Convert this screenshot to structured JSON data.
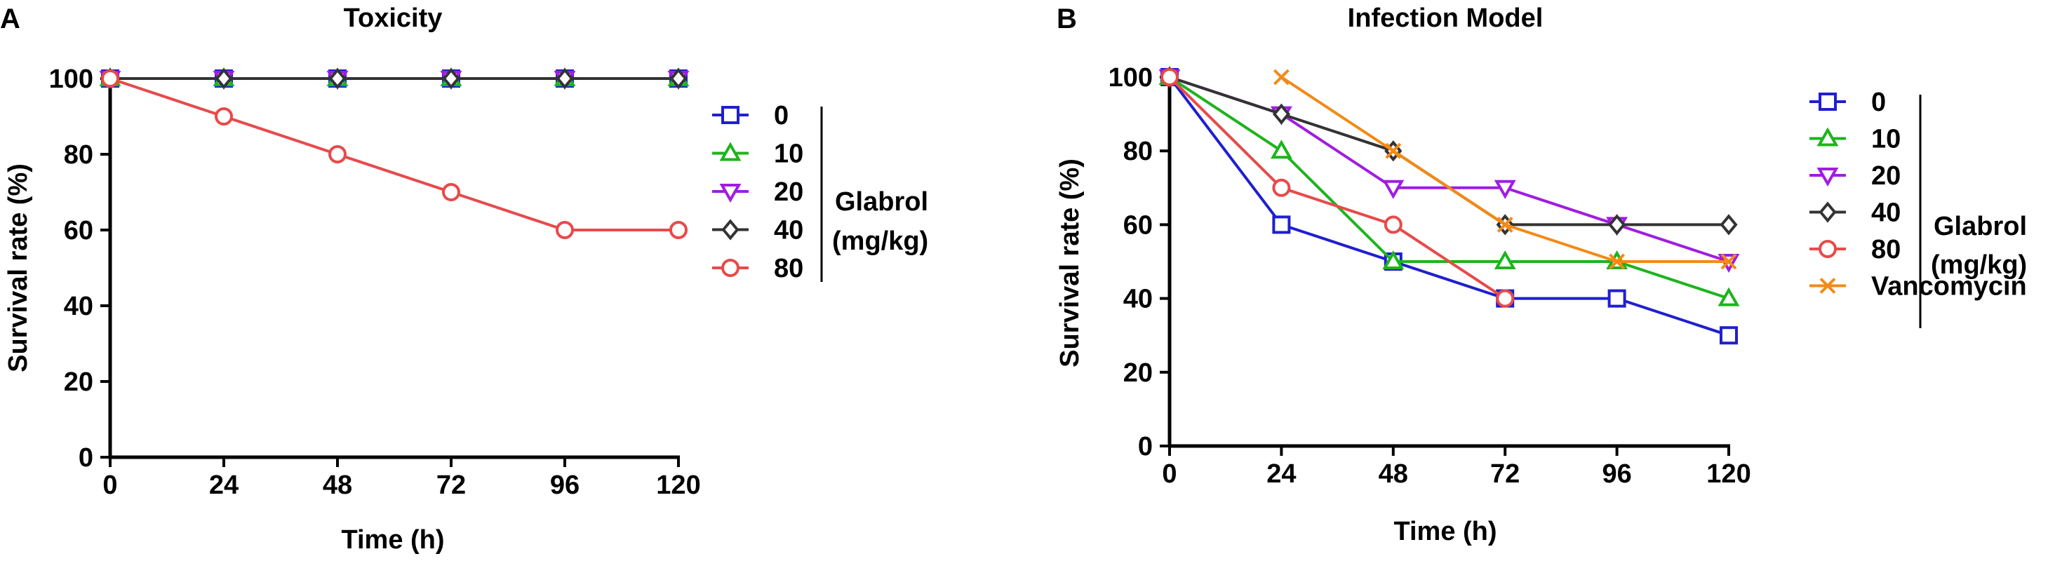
{
  "chart_data": [
    {
      "panel": "A",
      "type": "line",
      "title": "Toxicity",
      "xlabel": "Time (h)",
      "ylabel": "Survival rate (%)",
      "xlim": [
        0,
        120
      ],
      "ylim": [
        0,
        100
      ],
      "xticks": [
        0,
        24,
        48,
        72,
        96,
        120
      ],
      "yticks": [
        0,
        20,
        40,
        60,
        80,
        100
      ],
      "x": [
        0,
        24,
        48,
        72,
        96,
        120
      ],
      "legend_group_label": [
        "Glabrol",
        "(mg/kg)"
      ],
      "series": [
        {
          "name": "0",
          "color": "#1f1fd0",
          "marker": "square",
          "values": [
            100,
            100,
            100,
            100,
            100,
            100
          ]
        },
        {
          "name": "10",
          "color": "#1db41d",
          "marker": "triangle-up",
          "values": [
            100,
            100,
            100,
            100,
            100,
            100
          ]
        },
        {
          "name": "20",
          "color": "#a01de0",
          "marker": "triangle-down",
          "values": [
            100,
            100,
            100,
            100,
            100,
            100
          ]
        },
        {
          "name": "40",
          "color": "#333333",
          "marker": "diamond",
          "values": [
            100,
            100,
            100,
            100,
            100,
            100
          ]
        },
        {
          "name": "80",
          "color": "#e84a4a",
          "marker": "circle",
          "values": [
            100,
            90,
            80,
            70,
            60,
            60
          ]
        }
      ]
    },
    {
      "panel": "B",
      "type": "line",
      "title": "Infection Model",
      "xlabel": "Time (h)",
      "ylabel": "Survival rate (%)",
      "xlim": [
        0,
        120
      ],
      "ylim": [
        0,
        100
      ],
      "xticks": [
        0,
        24,
        48,
        72,
        96,
        120
      ],
      "yticks": [
        0,
        20,
        40,
        60,
        80,
        100
      ],
      "x": [
        0,
        24,
        48,
        72,
        96,
        120
      ],
      "legend_group_label": [
        "Glabrol",
        "(mg/kg)"
      ],
      "series": [
        {
          "name": "0",
          "color": "#1f1fd0",
          "marker": "square",
          "values": [
            100,
            60,
            50,
            40,
            40,
            30
          ]
        },
        {
          "name": "10",
          "color": "#1db41d",
          "marker": "triangle-up",
          "values": [
            100,
            80,
            50,
            50,
            50,
            40
          ]
        },
        {
          "name": "20",
          "color": "#a01de0",
          "marker": "triangle-down",
          "values": [
            100,
            90,
            70,
            70,
            60,
            50
          ]
        },
        {
          "name": "40",
          "color": "#333333",
          "marker": "diamond",
          "values": [
            100,
            90,
            80,
            60,
            60,
            60
          ]
        },
        {
          "name": "80",
          "color": "#e84a4a",
          "marker": "circle",
          "values": [
            100,
            70,
            60,
            40,
            null,
            null
          ]
        },
        {
          "name": "Vancomycin",
          "color": "#f28a16",
          "marker": "x",
          "values": [
            null,
            100,
            80,
            60,
            50,
            50
          ]
        }
      ],
      "grouped_series_count": 5
    }
  ]
}
